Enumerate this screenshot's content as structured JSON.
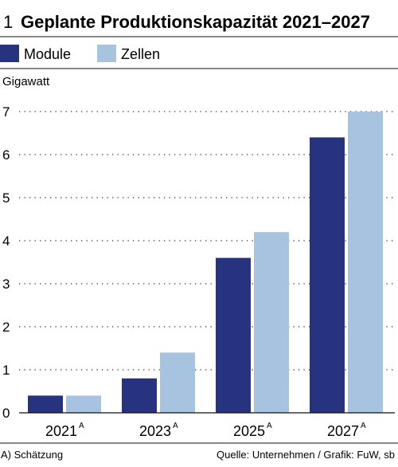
{
  "chart_data": {
    "type": "bar",
    "number": "1",
    "title": "Geplante Produktionskapazität 2021–2027",
    "ylabel": "Gigawatt",
    "ylim": [
      0,
      7
    ],
    "yticks": [
      0,
      1,
      2,
      3,
      4,
      5,
      6,
      7
    ],
    "grid": true,
    "legend_position": "top-left",
    "categories": [
      "2021",
      "2023",
      "2025",
      "2027"
    ],
    "category_marks": [
      "A",
      "A",
      "A",
      "A"
    ],
    "series": [
      {
        "name": "Module",
        "color": "#28337f",
        "values": [
          0.4,
          0.8,
          3.6,
          6.4
        ]
      },
      {
        "name": "Zellen",
        "color": "#a7c3df",
        "values": [
          0.4,
          1.4,
          4.2,
          7.0
        ]
      }
    ]
  },
  "footnote": "A) Schätzung",
  "source": "Quelle: Unternehmen / Grafik: FuW, sb"
}
